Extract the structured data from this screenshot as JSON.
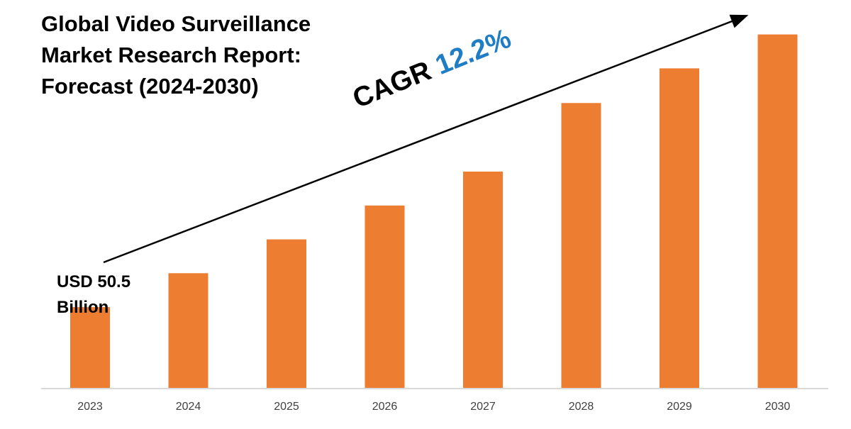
{
  "title_lines": [
    "Global Video Surveillance",
    "Market Research Report:",
    "Forecast (2024-2030)"
  ],
  "start_value_lines": [
    "USD 50.5",
    "Billion"
  ],
  "cagr": {
    "label": "CAGR",
    "value": "12.2%",
    "value_color": "#1f7dc6"
  },
  "colors": {
    "bar": "#ed7d31",
    "axis": "#d9d9d9",
    "arrow": "#000000",
    "tick_text": "#404040"
  },
  "chart_data": {
    "type": "bar",
    "title": "Global Video Surveillance Market Research Report: Forecast (2024-2030)",
    "categories": [
      "2023",
      "2024",
      "2025",
      "2026",
      "2027",
      "2028",
      "2029",
      "2030"
    ],
    "values": [
      50.5,
      71.5,
      92.5,
      113.5,
      134.5,
      177,
      198.5,
      219.5
    ],
    "value_unit": "USD Billion",
    "values_note": "only 2023 value printed; others estimated from bar heights",
    "ylim": [
      0,
      240
    ],
    "grid": false,
    "legend": "none",
    "annotation": "CAGR 12.2%"
  }
}
